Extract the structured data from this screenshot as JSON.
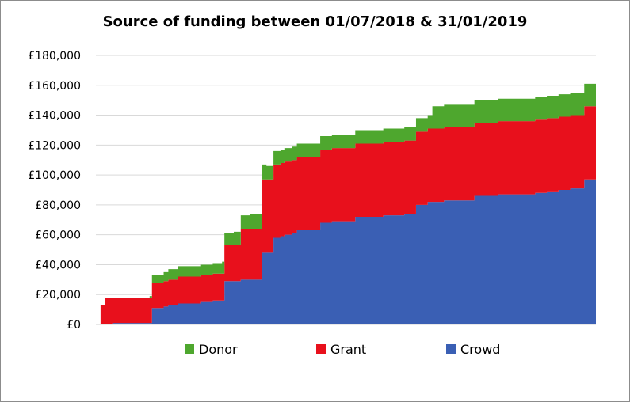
{
  "chart_data": {
    "type": "area",
    "stacked": true,
    "title": "Source of funding between 01/07/2018 & 31/01/2019",
    "xlabel": "",
    "ylabel": "",
    "x_range": [
      "01/07/2018",
      "31/01/2019"
    ],
    "ylim": [
      0,
      180000
    ],
    "y_ticks": [
      "£0",
      "£20,000",
      "£40,000",
      "£60,000",
      "£80,000",
      "£100,000",
      "£120,000",
      "£140,000",
      "£160,000",
      "£180,000"
    ],
    "y_tick_values": [
      0,
      20000,
      40000,
      60000,
      80000,
      100000,
      120000,
      140000,
      160000,
      180000
    ],
    "grid": true,
    "legend_position": "bottom",
    "x": [
      "2018-07-01",
      "2018-07-03",
      "2018-07-05",
      "2018-07-08",
      "2018-07-15",
      "2018-07-20",
      "2018-07-24",
      "2018-07-25",
      "2018-07-30",
      "2018-08-01",
      "2018-08-05",
      "2018-08-08",
      "2018-08-15",
      "2018-08-20",
      "2018-08-24",
      "2018-08-25",
      "2018-08-29",
      "2018-09-01",
      "2018-09-05",
      "2018-09-10",
      "2018-09-12",
      "2018-09-15",
      "2018-09-18",
      "2018-09-20",
      "2018-09-23",
      "2018-09-25",
      "2018-10-01",
      "2018-10-05",
      "2018-10-10",
      "2018-10-15",
      "2018-10-20",
      "2018-10-25",
      "2018-11-01",
      "2018-11-10",
      "2018-11-15",
      "2018-11-20",
      "2018-11-22",
      "2018-11-27",
      "2018-12-10",
      "2018-12-20",
      "2018-12-28",
      "2019-01-05",
      "2019-01-10",
      "2019-01-15",
      "2019-01-20",
      "2019-01-26",
      "2019-01-31"
    ],
    "series": [
      {
        "name": "Crowd",
        "color": "#3a5fb4",
        "values": [
          0,
          0,
          500,
          1000,
          1000,
          1000,
          1000,
          11000,
          12000,
          13000,
          14000,
          14000,
          15000,
          16000,
          16000,
          29000,
          29000,
          30000,
          30000,
          48000,
          48000,
          58000,
          59000,
          60000,
          61000,
          63000,
          63000,
          68000,
          69000,
          69000,
          72000,
          72000,
          73000,
          74000,
          80000,
          82000,
          82000,
          83000,
          86000,
          87000,
          87000,
          88000,
          89000,
          90000,
          91000,
          97000,
          98000
        ]
      },
      {
        "name": "Grant",
        "color": "#e8101c",
        "values": [
          0,
          13000,
          17000,
          17000,
          17000,
          17000,
          17000,
          17000,
          17000,
          17000,
          18000,
          18000,
          18000,
          18000,
          18000,
          24000,
          24000,
          34000,
          34000,
          49000,
          49000,
          49000,
          49000,
          49000,
          49000,
          49000,
          49000,
          49000,
          49000,
          49000,
          49000,
          49000,
          49000,
          49000,
          49000,
          49000,
          49000,
          49000,
          49000,
          49000,
          49000,
          49000,
          49000,
          49000,
          49000,
          49000,
          49000
        ]
      },
      {
        "name": "Donor",
        "color": "#4ea72e",
        "values": [
          0,
          0,
          0,
          0,
          0,
          0,
          1000,
          5000,
          6000,
          7000,
          7000,
          7000,
          7000,
          7000,
          8000,
          8000,
          9000,
          9000,
          10000,
          10000,
          9000,
          9000,
          9000,
          9000,
          9000,
          9000,
          9000,
          9000,
          9000,
          9000,
          9000,
          9000,
          9000,
          9000,
          9000,
          9000,
          15000,
          15000,
          15000,
          15000,
          15000,
          15000,
          15000,
          15000,
          15000,
          15000,
          15000
        ]
      }
    ]
  }
}
